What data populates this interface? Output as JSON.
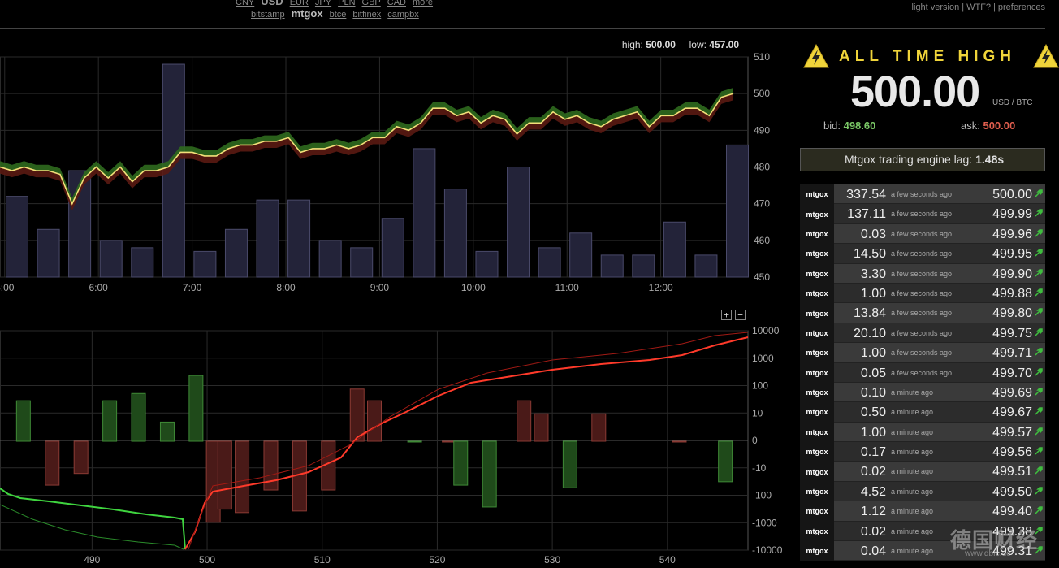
{
  "nav": {
    "currencies": [
      "CNY",
      "USD",
      "EUR",
      "JPY",
      "PLN",
      "GBP",
      "CAD",
      "more"
    ],
    "selected_currency": "USD",
    "exchanges": [
      "bitstamp",
      "mtgox",
      "btce",
      "bitfinex",
      "campbx"
    ],
    "selected_exchange": "mtgox",
    "links": [
      "light version",
      "WTF?",
      "preferences"
    ]
  },
  "header": {
    "high_label": "high:",
    "high_value": "500.00",
    "low_label": "low:",
    "low_value": "457.00"
  },
  "zoom": {
    "in_label": "+",
    "out_label": "−"
  },
  "ticker": {
    "ath_label": "ALL TIME HIGH",
    "price": "500.00",
    "pair": "USD / BTC",
    "bid_label": "bid:",
    "bid": "498.60",
    "ask_label": "ask:",
    "ask": "500.00",
    "lag_label": "Mtgox trading engine lag:",
    "lag_value": "1.48s"
  },
  "colors": {
    "accent_yellow": "#f0d43a",
    "bid_green": "#7ac866",
    "ask_red": "#e05e4e",
    "volume_bar": "#232339"
  },
  "trades": [
    {
      "exchange": "mtgox",
      "amount": "337.54",
      "ago": "a few seconds ago",
      "price": "500.00"
    },
    {
      "exchange": "mtgox",
      "amount": "137.11",
      "ago": "a few seconds ago",
      "price": "499.99"
    },
    {
      "exchange": "mtgox",
      "amount": "0.03",
      "ago": "a few seconds ago",
      "price": "499.96"
    },
    {
      "exchange": "mtgox",
      "amount": "14.50",
      "ago": "a few seconds ago",
      "price": "499.95"
    },
    {
      "exchange": "mtgox",
      "amount": "3.30",
      "ago": "a few seconds ago",
      "price": "499.90"
    },
    {
      "exchange": "mtgox",
      "amount": "1.00",
      "ago": "a few seconds ago",
      "price": "499.88"
    },
    {
      "exchange": "mtgox",
      "amount": "13.84",
      "ago": "a few seconds ago",
      "price": "499.80"
    },
    {
      "exchange": "mtgox",
      "amount": "20.10",
      "ago": "a few seconds ago",
      "price": "499.75"
    },
    {
      "exchange": "mtgox",
      "amount": "1.00",
      "ago": "a few seconds ago",
      "price": "499.71"
    },
    {
      "exchange": "mtgox",
      "amount": "0.05",
      "ago": "a few seconds ago",
      "price": "499.70"
    },
    {
      "exchange": "mtgox",
      "amount": "0.10",
      "ago": "a minute ago",
      "price": "499.69"
    },
    {
      "exchange": "mtgox",
      "amount": "0.50",
      "ago": "a minute ago",
      "price": "499.67"
    },
    {
      "exchange": "mtgox",
      "amount": "1.00",
      "ago": "a minute ago",
      "price": "499.57"
    },
    {
      "exchange": "mtgox",
      "amount": "0.17",
      "ago": "a minute ago",
      "price": "499.56"
    },
    {
      "exchange": "mtgox",
      "amount": "0.02",
      "ago": "a minute ago",
      "price": "499.51"
    },
    {
      "exchange": "mtgox",
      "amount": "4.52",
      "ago": "a minute ago",
      "price": "499.50"
    },
    {
      "exchange": "mtgox",
      "amount": "1.12",
      "ago": "a minute ago",
      "price": "499.40"
    },
    {
      "exchange": "mtgox",
      "amount": "0.02",
      "ago": "a minute ago",
      "price": "499.38"
    },
    {
      "exchange": "mtgox",
      "amount": "0.04",
      "ago": "a minute ago",
      "price": "499.31"
    }
  ],
  "watermark": {
    "line1": "德国财经",
    "line2": "www.dbfc.de"
  },
  "chart_data": [
    {
      "type": "line",
      "ylim": [
        450,
        510
      ],
      "y_ticks": [
        "510",
        "500",
        "490",
        "480",
        "470",
        "460",
        "450"
      ],
      "x_ticks": [
        "5:00",
        "6:00",
        "7:00",
        "8:00",
        "9:00",
        "10:00",
        "11:00",
        "12:00"
      ],
      "x_tick_hours": [
        5,
        6,
        7,
        8,
        9,
        10,
        11,
        12
      ],
      "x_range_hours": [
        4.95,
        12.93
      ],
      "volume_bars": [
        472,
        463,
        479,
        460,
        458,
        508,
        457,
        463,
        471,
        471,
        460,
        458,
        466,
        485,
        474,
        457,
        480,
        458,
        462,
        456,
        456,
        465,
        456,
        486
      ],
      "price_series": [
        480,
        479,
        480,
        479,
        479,
        478,
        470,
        477,
        480,
        477,
        480,
        476,
        479,
        479,
        480,
        484,
        484,
        483,
        483,
        485,
        486,
        486,
        487,
        487,
        488,
        484,
        485,
        485,
        486,
        485,
        486,
        488,
        488,
        491,
        490,
        492,
        496,
        496,
        494,
        495,
        492,
        494,
        493,
        489,
        492,
        492,
        495,
        493,
        494,
        492,
        491,
        493,
        494,
        495,
        491,
        494,
        494,
        496,
        496,
        494,
        499,
        500
      ]
    },
    {
      "type": "bar",
      "description_ticks_x": [
        "490",
        "500",
        "510",
        "520",
        "530",
        "540"
      ],
      "x_tick_values": [
        490,
        500,
        510,
        520,
        530,
        540
      ],
      "x_range": [
        482,
        547
      ],
      "y_ticks": [
        "10000",
        "1000",
        "100",
        "10",
        "0",
        "-10",
        "-100",
        "-1000",
        "-10000"
      ],
      "bars": [
        {
          "x": 484,
          "v": 30
        },
        {
          "x": 486.5,
          "v": -40
        },
        {
          "x": 489,
          "v": -15
        },
        {
          "x": 491.5,
          "v": 30
        },
        {
          "x": 494,
          "v": 55
        },
        {
          "x": 496.5,
          "v": 5
        },
        {
          "x": 499,
          "v": 250
        },
        {
          "x": 500.5,
          "v": -900
        },
        {
          "x": 501.5,
          "v": -300
        },
        {
          "x": 503,
          "v": -400
        },
        {
          "x": 505.5,
          "v": -60
        },
        {
          "x": 508,
          "v": -350
        },
        {
          "x": 510.5,
          "v": -60
        },
        {
          "x": 513,
          "v": 80
        },
        {
          "x": 514.5,
          "v": 30
        },
        {
          "x": 518,
          "v": -1
        },
        {
          "x": 521,
          "v": 1
        },
        {
          "x": 522,
          "v": -40
        },
        {
          "x": 524.5,
          "v": -250
        },
        {
          "x": 527.5,
          "v": 30
        },
        {
          "x": 529,
          "v": 10
        },
        {
          "x": 531.5,
          "v": -50
        },
        {
          "x": 534,
          "v": 10
        },
        {
          "x": 541,
          "v": 1
        },
        {
          "x": 545,
          "v": -30
        }
      ]
    }
  ]
}
